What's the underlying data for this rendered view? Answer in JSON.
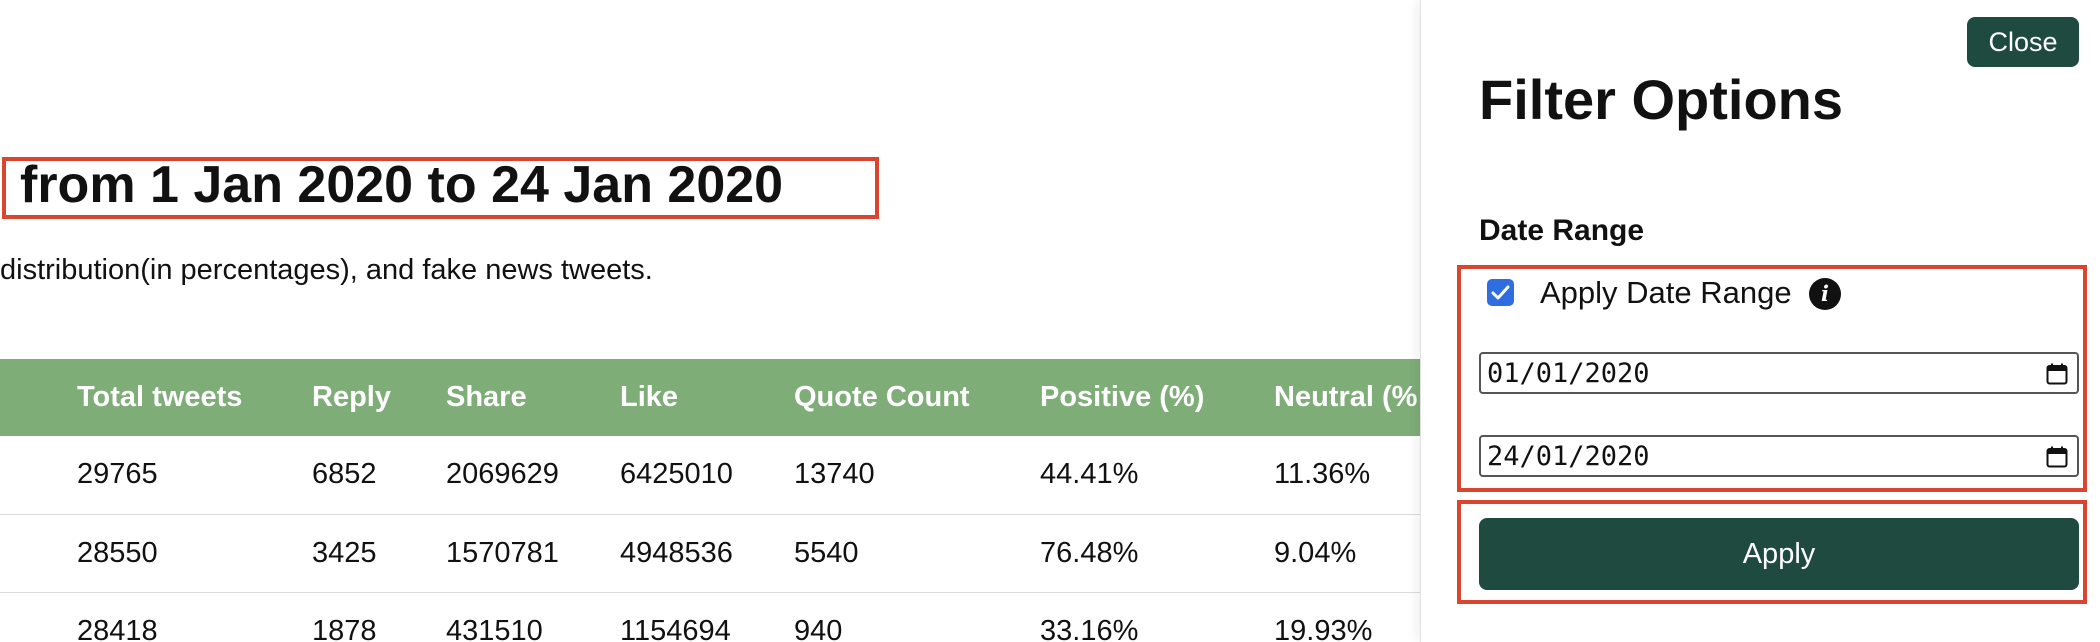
{
  "main": {
    "headline": "from 1 Jan 2020 to 24 Jan 2020",
    "description": "distribution(in percentages), and fake news tweets."
  },
  "table": {
    "headers": [
      "Total tweets",
      "Reply",
      "Share",
      "Like",
      "Quote Count",
      "Positive (%)",
      "Neutral (%"
    ],
    "rows": [
      [
        "29765",
        "6852",
        "2069629",
        "6425010",
        "13740",
        "44.41%",
        "11.36%"
      ],
      [
        "28550",
        "3425",
        "1570781",
        "4948536",
        "5540",
        "76.48%",
        "9.04%"
      ],
      [
        "28418",
        "1878",
        "431510",
        "1154694",
        "940",
        "33.16%",
        "19.93%"
      ]
    ]
  },
  "panel": {
    "close_label": "Close",
    "title": "Filter Options",
    "section_label": "Date Range",
    "checkbox_label": "Apply Date Range",
    "checkbox_checked": true,
    "start_date": "01/01/2020",
    "end_date": "24/01/2020",
    "apply_label": "Apply"
  },
  "icons": {
    "info": "info-icon",
    "calendar": "calendar-icon",
    "check": "check-icon"
  },
  "colors": {
    "table_header": "#7ead78",
    "button": "#1f4a3f",
    "highlight_border": "#d9452e",
    "checkbox": "#2f6ee0"
  }
}
